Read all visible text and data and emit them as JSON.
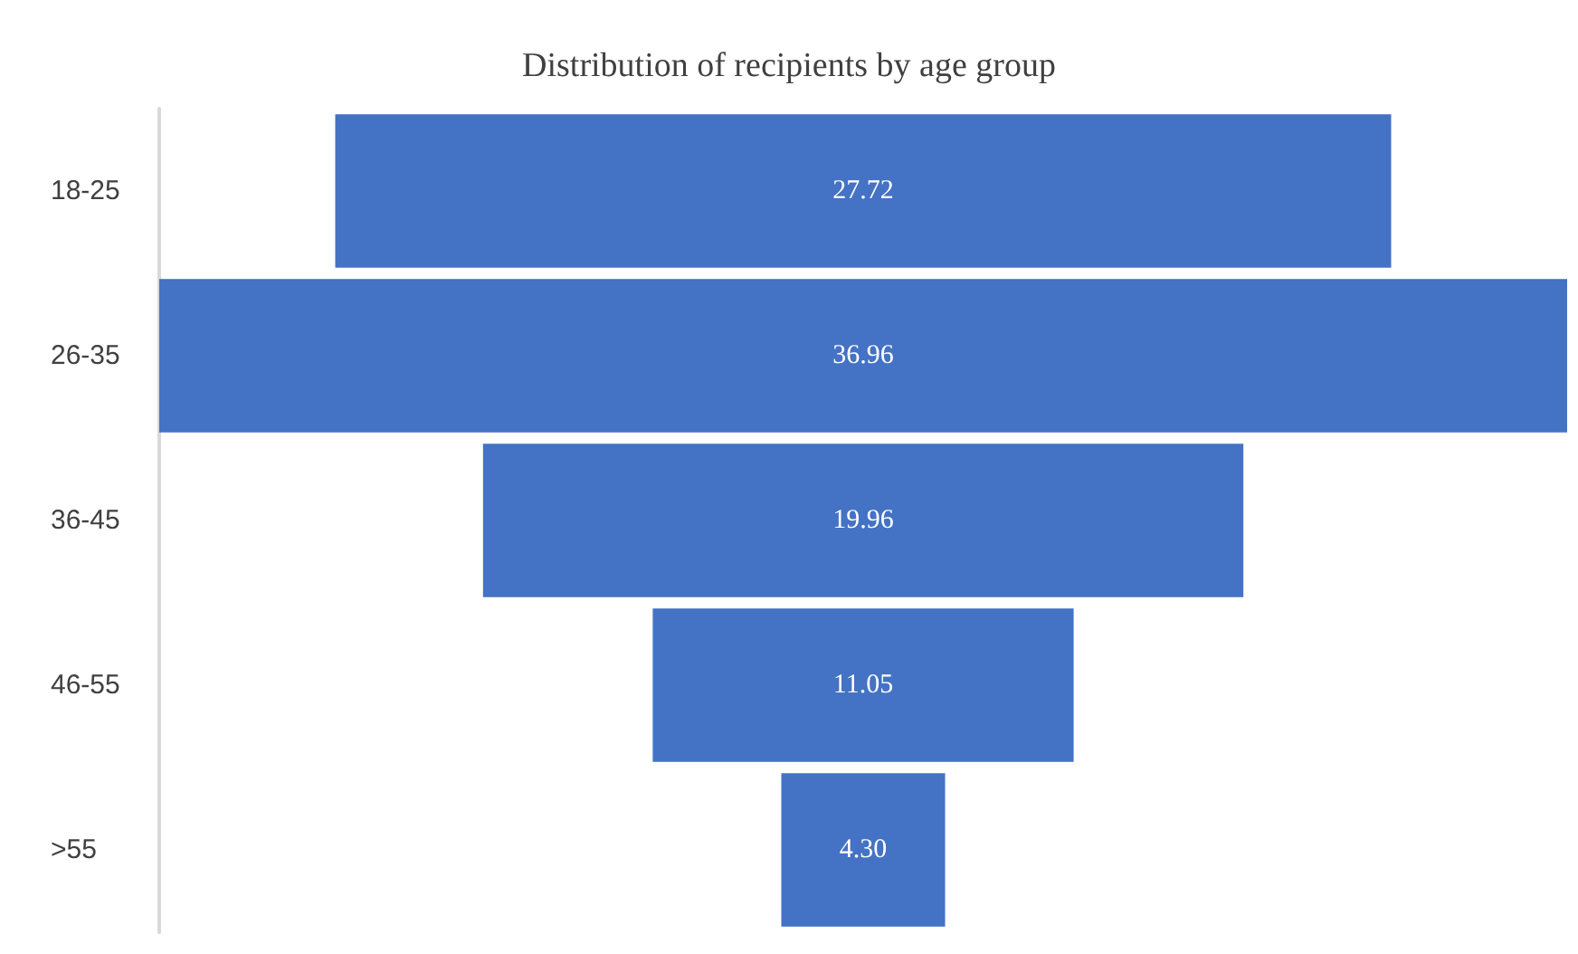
{
  "chart_data": {
    "type": "other",
    "title": "Distribution of recipients by age group",
    "categories": [
      "18-25",
      "26-35",
      "36-45",
      "46-55",
      ">55"
    ],
    "values": [
      27.72,
      36.96,
      19.96,
      11.05,
      4.3
    ],
    "value_labels": [
      "27.72",
      "36.96",
      "19.96",
      "11.05",
      "4.30"
    ],
    "color": "#4472c4"
  }
}
